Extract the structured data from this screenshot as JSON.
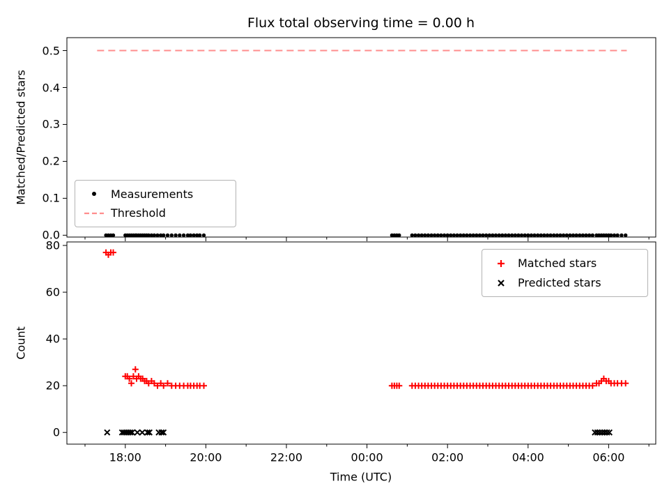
{
  "figure": {
    "background": "#ffffff"
  },
  "colors": {
    "matched": "#ff0000",
    "predicted": "#000000",
    "measurements": "#000000",
    "threshold": "#ff8d8d",
    "axis": "#000000"
  },
  "chart_data": [
    {
      "type": "scatter",
      "title": "Flux total observing time = 0.00 h",
      "ylabel": "Matched/Predicted stars",
      "xlabel": "",
      "xlim": [
        16.55,
        31.17
      ],
      "ylim": [
        -0.005,
        0.535
      ],
      "xticks": [
        18,
        20,
        22,
        24,
        26,
        28,
        30
      ],
      "xtick_labels": [
        "",
        "",
        "",
        "",
        "",
        "",
        ""
      ],
      "xticks_minor": [
        17,
        19,
        21,
        23,
        25,
        27,
        29,
        31
      ],
      "yticks": [
        0.0,
        0.1,
        0.2,
        0.3,
        0.4,
        0.5
      ],
      "ytick_labels": [
        "0.0",
        "0.1",
        "0.2",
        "0.3",
        "0.4",
        "0.5"
      ],
      "grid": false,
      "legend_position": "lower left",
      "legend": [
        {
          "label": "Measurements",
          "marker": "dot"
        },
        {
          "label": "Threshold",
          "marker": "dashed-line"
        }
      ],
      "series": [
        {
          "name": "Threshold",
          "type": "hline",
          "y": 0.5,
          "x_range": [
            17.3,
            30.45
          ],
          "color_key": "threshold",
          "dashed": true
        },
        {
          "name": "Measurements",
          "type": "scatter",
          "marker": "dot",
          "color_key": "measurements",
          "y_const": 0.0,
          "x": [
            17.52,
            17.58,
            17.64,
            17.7,
            18.0,
            18.05,
            18.1,
            18.15,
            18.2,
            18.25,
            18.28,
            18.33,
            18.38,
            18.43,
            18.48,
            18.53,
            18.58,
            18.65,
            18.72,
            18.8,
            18.88,
            18.95,
            19.05,
            19.15,
            19.25,
            19.35,
            19.45,
            19.55,
            19.62,
            19.7,
            19.78,
            19.85,
            19.95,
            24.62,
            24.68,
            24.74,
            24.8,
            25.12,
            25.2,
            25.28,
            25.36,
            25.44,
            25.52,
            25.6,
            25.68,
            25.76,
            25.84,
            25.92,
            26.0,
            26.08,
            26.16,
            26.24,
            26.32,
            26.4,
            26.48,
            26.56,
            26.64,
            26.72,
            26.8,
            26.88,
            26.96,
            27.04,
            27.12,
            27.2,
            27.28,
            27.36,
            27.44,
            27.52,
            27.6,
            27.68,
            27.76,
            27.84,
            27.92,
            28.0,
            28.08,
            28.16,
            28.24,
            28.32,
            28.4,
            28.48,
            28.56,
            28.64,
            28.72,
            28.8,
            28.88,
            28.96,
            29.04,
            29.12,
            29.2,
            29.28,
            29.36,
            29.44,
            29.52,
            29.6,
            29.7,
            29.76,
            29.82,
            29.88,
            29.94,
            30.0,
            30.06,
            30.14,
            30.22,
            30.32,
            30.42
          ]
        }
      ]
    },
    {
      "type": "scatter",
      "title": "",
      "ylabel": "Count",
      "xlabel": "Time (UTC)",
      "xlim": [
        16.55,
        31.17
      ],
      "ylim": [
        -5,
        81.5
      ],
      "xticks": [
        18,
        20,
        22,
        24,
        26,
        28,
        30
      ],
      "xtick_labels": [
        "18:00",
        "20:00",
        "22:00",
        "00:00",
        "02:00",
        "04:00",
        "06:00"
      ],
      "xticks_minor": [
        17,
        19,
        21,
        23,
        25,
        27,
        29,
        31
      ],
      "yticks": [
        0,
        20,
        40,
        60,
        80
      ],
      "ytick_labels": [
        "0",
        "20",
        "40",
        "60",
        "80"
      ],
      "grid": false,
      "legend_position": "upper right",
      "legend": [
        {
          "label": "Matched stars",
          "marker": "plus"
        },
        {
          "label": "Predicted stars",
          "marker": "x"
        }
      ],
      "series": [
        {
          "name": "Matched stars",
          "type": "scatter",
          "marker": "plus",
          "color_key": "matched",
          "x": [
            17.52,
            17.58,
            17.64,
            17.7,
            18.0,
            18.05,
            18.1,
            18.15,
            18.2,
            18.25,
            18.28,
            18.33,
            18.38,
            18.43,
            18.48,
            18.53,
            18.58,
            18.65,
            18.72,
            18.8,
            18.88,
            18.95,
            19.05,
            19.15,
            19.25,
            19.35,
            19.45,
            19.55,
            19.62,
            19.7,
            19.78,
            19.85,
            19.95,
            24.62,
            24.68,
            24.74,
            24.8,
            25.12,
            25.2,
            25.28,
            25.36,
            25.44,
            25.52,
            25.6,
            25.68,
            25.76,
            25.84,
            25.92,
            26.0,
            26.08,
            26.16,
            26.24,
            26.32,
            26.4,
            26.48,
            26.56,
            26.64,
            26.72,
            26.8,
            26.88,
            26.96,
            27.04,
            27.12,
            27.2,
            27.28,
            27.36,
            27.44,
            27.52,
            27.6,
            27.68,
            27.76,
            27.84,
            27.92,
            28.0,
            28.08,
            28.16,
            28.24,
            28.32,
            28.4,
            28.48,
            28.56,
            28.64,
            28.72,
            28.8,
            28.88,
            28.96,
            29.04,
            29.12,
            29.2,
            29.28,
            29.36,
            29.44,
            29.52,
            29.6,
            29.7,
            29.76,
            29.82,
            29.88,
            29.94,
            30.0,
            30.06,
            30.14,
            30.22,
            30.32,
            30.42
          ],
          "y": [
            77,
            76,
            77,
            77,
            24,
            24,
            23,
            21,
            24,
            27,
            23,
            24,
            23,
            23,
            22,
            22,
            21,
            22,
            21,
            20,
            21,
            20,
            21,
            20,
            20,
            20,
            20,
            20,
            20,
            20,
            20,
            20,
            20,
            20,
            20,
            20,
            20,
            20,
            20,
            20,
            20,
            20,
            20,
            20,
            20,
            20,
            20,
            20,
            20,
            20,
            20,
            20,
            20,
            20,
            20,
            20,
            20,
            20,
            20,
            20,
            20,
            20,
            20,
            20,
            20,
            20,
            20,
            20,
            20,
            20,
            20,
            20,
            20,
            20,
            20,
            20,
            20,
            20,
            20,
            20,
            20,
            20,
            20,
            20,
            20,
            20,
            20,
            20,
            20,
            20,
            20,
            20,
            20,
            20,
            21,
            21,
            22,
            23,
            22,
            22,
            21,
            21,
            21,
            21,
            21
          ]
        },
        {
          "name": "Predicted stars",
          "type": "scatter",
          "marker": "x",
          "color_key": "predicted",
          "y_const": 0,
          "x": [
            17.55,
            17.92,
            17.97,
            18.02,
            18.07,
            18.12,
            18.17,
            18.3,
            18.42,
            18.55,
            18.6,
            18.83,
            18.9,
            18.95,
            29.66,
            29.72,
            29.78,
            29.84,
            29.9,
            29.96,
            30.02
          ]
        }
      ]
    }
  ]
}
